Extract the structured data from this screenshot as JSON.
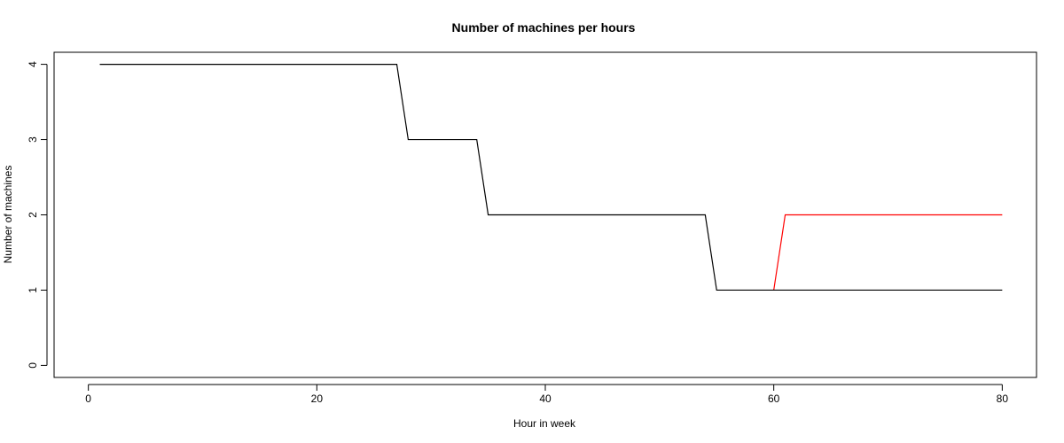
{
  "chart_data": {
    "type": "line",
    "title": "Number of machines per hours",
    "xlabel": "Hour in week",
    "ylabel": "Number of machines",
    "xlim": [
      -3,
      83
    ],
    "ylim": [
      -0.16,
      4.16
    ],
    "x_ticks": [
      0,
      20,
      40,
      60,
      80
    ],
    "y_ticks": [
      0,
      1,
      2,
      3,
      4
    ],
    "grid": false,
    "series": [
      {
        "color": "#ff0000",
        "points": [
          [
            60,
            1
          ],
          [
            61,
            2
          ],
          [
            80,
            2
          ]
        ]
      },
      {
        "color": "#000000",
        "points": [
          [
            1,
            4
          ],
          [
            27,
            4
          ],
          [
            28,
            3
          ],
          [
            34,
            3
          ],
          [
            35,
            2
          ],
          [
            54,
            2
          ],
          [
            55,
            1
          ],
          [
            80,
            1
          ]
        ]
      }
    ]
  }
}
